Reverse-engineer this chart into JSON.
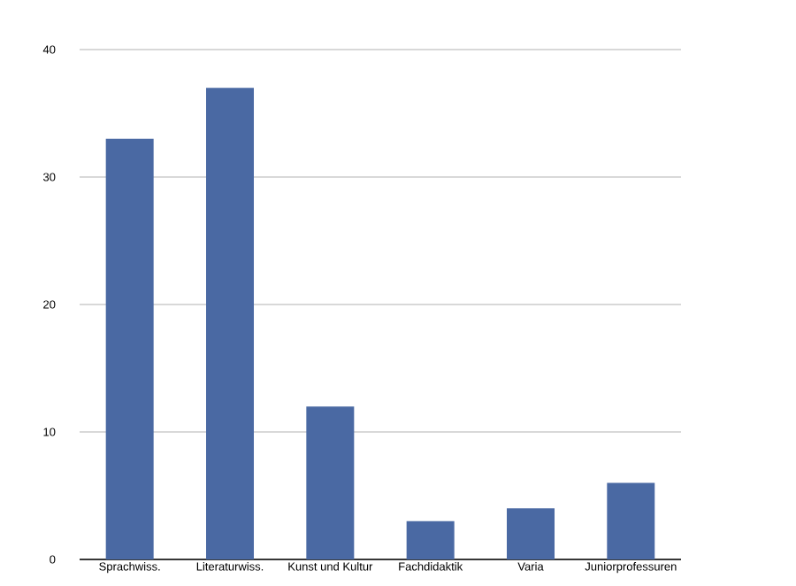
{
  "chart_data": {
    "type": "bar",
    "categories": [
      "Sprachwiss.",
      "Literaturwiss.",
      "Kunst und Kultur",
      "Fachdidaktik",
      "Varia",
      "Juniorprofessuren"
    ],
    "values": [
      33,
      37,
      12,
      3,
      4,
      6
    ],
    "color": "#4a69a3",
    "ylim": [
      0,
      40
    ],
    "yticks": [
      0,
      10,
      20,
      30,
      40
    ],
    "grid": "y"
  }
}
